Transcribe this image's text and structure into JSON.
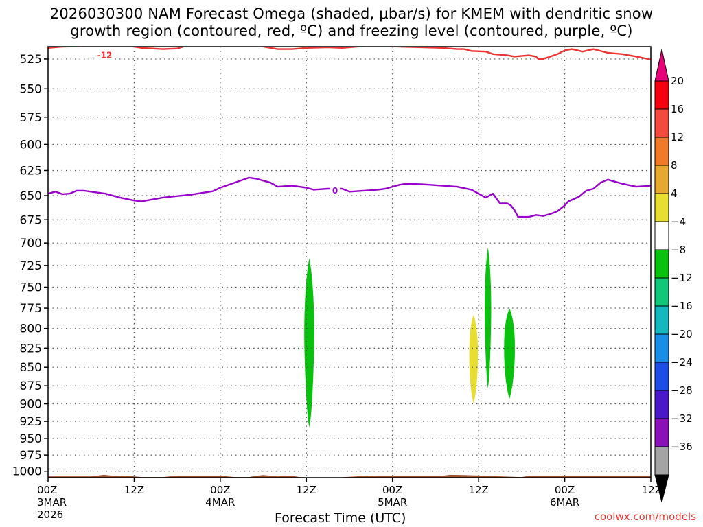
{
  "title": {
    "line1": "2026030300 NAM Forecast Omega (shaded, μbar/s) for KMEM with dendritic snow",
    "line2": "growth region (contoured, red, ºC) and freezing level (contoured, purple, ºC)"
  },
  "credit": "coolwx.com/models",
  "colors": {
    "dendritic_contour": "#ee3333",
    "freezing_contour": "#9900cc",
    "ground": "#a0522d",
    "grid": "#555555"
  },
  "chart_data": {
    "type": "heatmap",
    "xlabel": "Forecast Time (UTC)",
    "ylabel": "",
    "x_range_hours": [
      0,
      84
    ],
    "y_axis": {
      "type": "log-pressure",
      "range_hpa": [
        515,
        1010
      ],
      "ticks": [
        525,
        550,
        575,
        600,
        625,
        650,
        675,
        700,
        725,
        750,
        775,
        800,
        825,
        850,
        875,
        900,
        925,
        950,
        975,
        1000
      ]
    },
    "x_ticks": [
      {
        "hour": 0,
        "line1": "00Z",
        "line2": "3MAR",
        "line3": "2026"
      },
      {
        "hour": 12,
        "line1": "12Z",
        "line2": "",
        "line3": ""
      },
      {
        "hour": 24,
        "line1": "00Z",
        "line2": "4MAR",
        "line3": ""
      },
      {
        "hour": 36,
        "line1": "12Z",
        "line2": "",
        "line3": ""
      },
      {
        "hour": 48,
        "line1": "00Z",
        "line2": "5MAR",
        "line3": ""
      },
      {
        "hour": 60,
        "line1": "12Z",
        "line2": "",
        "line3": ""
      },
      {
        "hour": 72,
        "line1": "00Z",
        "line2": "6MAR",
        "line3": ""
      },
      {
        "hour": 84,
        "line1": "12Z",
        "line2": "",
        "line3": ""
      }
    ],
    "grid": true,
    "colorbar": {
      "labels": [
        "20",
        "16",
        "12",
        "8",
        "4",
        "−4",
        "−8",
        "−12",
        "−16",
        "−20",
        "−24",
        "−28",
        "−32",
        "−36"
      ],
      "colors": [
        "#f5000f",
        "#f34a3d",
        "#ef7a2a",
        "#e6a82e",
        "#e8dd31",
        "#ffffff",
        "#09c20d",
        "#11c87a",
        "#13b9bf",
        "#1a8ee6",
        "#1c4de6",
        "#4a18c8",
        "#8b10b8",
        "#a4a4a4"
      ],
      "top_arrow_color": "#e8007a",
      "bottom_arrow_color": "#000000"
    },
    "series": [
      {
        "name": "-12",
        "kind": "dendritic_contour",
        "color": "#ee3333",
        "label": "-12",
        "label_point": [
          7.9,
          522
        ],
        "points": [
          [
            0,
            516
          ],
          [
            2,
            515
          ],
          [
            11,
            514
          ],
          [
            13,
            516
          ],
          [
            16,
            517
          ],
          [
            18,
            516.5
          ],
          [
            20,
            513
          ],
          [
            27,
            513
          ],
          [
            29,
            514
          ],
          [
            31,
            516
          ],
          [
            32,
            517
          ],
          [
            34,
            517
          ],
          [
            36,
            516
          ],
          [
            39,
            515.5
          ],
          [
            41,
            516
          ],
          [
            43,
            515
          ],
          [
            46,
            514
          ],
          [
            49,
            515
          ],
          [
            52,
            515.5
          ],
          [
            55,
            516
          ],
          [
            57,
            517
          ],
          [
            58,
            517
          ],
          [
            59,
            518.5
          ],
          [
            61,
            519
          ],
          [
            62,
            521
          ],
          [
            64,
            522
          ],
          [
            65,
            523
          ],
          [
            67,
            522
          ],
          [
            68,
            523
          ],
          [
            68.3,
            525
          ],
          [
            69,
            525
          ],
          [
            70,
            523
          ],
          [
            71,
            521
          ],
          [
            72,
            518
          ],
          [
            73,
            517
          ],
          [
            74.5,
            519
          ],
          [
            76,
            517
          ],
          [
            78,
            520
          ],
          [
            80,
            521
          ],
          [
            82,
            523
          ],
          [
            84,
            525.5
          ]
        ]
      },
      {
        "name": "0",
        "kind": "freezing_contour",
        "color": "#9900cc",
        "label": "0",
        "label_point": [
          40,
          645
        ],
        "points": [
          [
            0,
            648
          ],
          [
            1,
            646
          ],
          [
            2,
            648.5
          ],
          [
            3,
            648
          ],
          [
            4,
            645
          ],
          [
            5,
            645
          ],
          [
            7,
            647
          ],
          [
            8,
            648
          ],
          [
            10,
            652
          ],
          [
            12,
            655
          ],
          [
            13,
            656
          ],
          [
            16,
            652
          ],
          [
            20,
            649
          ],
          [
            23,
            645.5
          ],
          [
            24,
            642
          ],
          [
            26,
            637
          ],
          [
            28,
            632
          ],
          [
            29,
            633
          ],
          [
            31,
            637
          ],
          [
            32,
            641
          ],
          [
            34,
            640
          ],
          [
            35,
            641
          ],
          [
            36,
            642
          ],
          [
            37,
            644
          ],
          [
            39,
            643
          ],
          [
            41,
            643
          ],
          [
            42,
            646
          ],
          [
            44,
            645
          ],
          [
            46,
            644
          ],
          [
            47,
            643
          ],
          [
            48,
            641
          ],
          [
            49,
            639
          ],
          [
            50,
            638
          ],
          [
            52,
            638.5
          ],
          [
            55,
            640
          ],
          [
            57,
            641
          ],
          [
            59,
            644
          ],
          [
            60,
            648
          ],
          [
            61,
            652
          ],
          [
            62,
            648
          ],
          [
            62.5,
            653
          ],
          [
            63,
            658
          ],
          [
            64,
            658
          ],
          [
            64.5,
            660
          ],
          [
            65,
            665
          ],
          [
            65.5,
            672
          ],
          [
            67,
            672
          ],
          [
            68,
            670
          ],
          [
            69,
            671
          ],
          [
            70,
            669
          ],
          [
            71,
            666
          ],
          [
            72,
            660
          ],
          [
            72.5,
            656
          ],
          [
            74,
            651
          ],
          [
            75,
            645
          ],
          [
            76,
            643
          ],
          [
            77,
            637
          ],
          [
            78,
            634
          ],
          [
            80,
            638
          ],
          [
            82,
            641
          ],
          [
            84,
            640
          ]
        ]
      }
    ],
    "shaded_regions": [
      {
        "value_range": "-8 to -4",
        "color": "#09c20d",
        "center_hour": 36.4,
        "half_width_hours": 0.7,
        "top_hpa": 717,
        "bottom_hpa": 933
      },
      {
        "value_range": "4 to 8",
        "color": "#e8dd31",
        "center_hour": 59.3,
        "half_width_hours": 0.6,
        "top_hpa": 783,
        "bottom_hpa": 900
      },
      {
        "value_range": "-8 to -4",
        "color": "#09c20d",
        "center_hour": 61.3,
        "half_width_hours": 0.45,
        "top_hpa": 705,
        "bottom_hpa": 878
      },
      {
        "value_range": "-8 to -4",
        "color": "#09c20d",
        "center_hour": 64.3,
        "half_width_hours": 0.75,
        "top_hpa": 775,
        "bottom_hpa": 893
      }
    ],
    "ground": [
      [
        0,
        1008
      ],
      [
        6,
        1008
      ],
      [
        7.8,
        1005.5
      ],
      [
        9,
        1007
      ],
      [
        12,
        1008
      ],
      [
        13,
        1009
      ],
      [
        16,
        1009
      ],
      [
        18,
        1007
      ],
      [
        24,
        1007
      ],
      [
        26,
        1009
      ],
      [
        28,
        1009
      ],
      [
        29,
        1007
      ],
      [
        30,
        1006
      ],
      [
        32,
        1008
      ],
      [
        34,
        1007
      ],
      [
        35,
        1009
      ],
      [
        37,
        1010
      ],
      [
        40,
        1010
      ],
      [
        43,
        1008
      ],
      [
        46,
        1007
      ],
      [
        48,
        1007
      ],
      [
        55,
        1007
      ],
      [
        56,
        1005.5
      ],
      [
        58,
        1006
      ],
      [
        61,
        1007
      ],
      [
        63,
        1008
      ],
      [
        66,
        1009
      ],
      [
        67,
        1007
      ],
      [
        74,
        1007
      ],
      [
        84,
        1007
      ]
    ]
  }
}
